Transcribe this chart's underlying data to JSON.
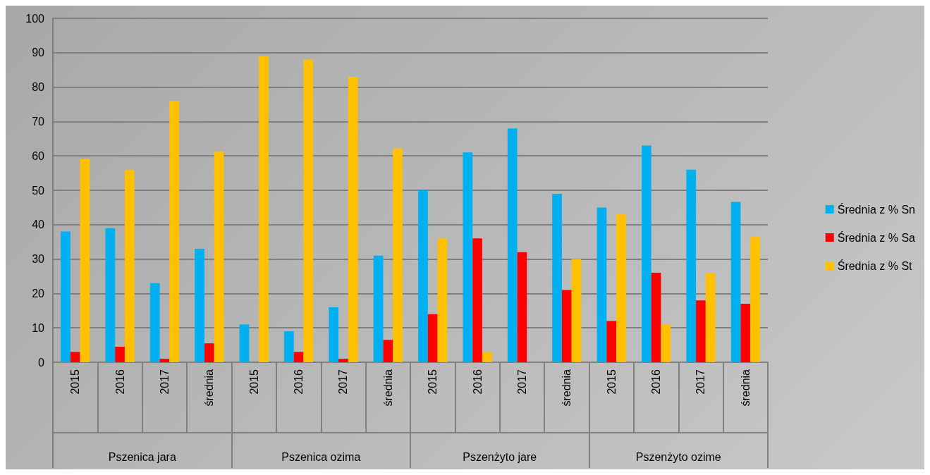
{
  "chart_data": {
    "type": "bar",
    "categories": [
      "2015",
      "2016",
      "2017",
      "średnia",
      "2015",
      "2016",
      "2017",
      "średnia",
      "2015",
      "2016",
      "2017",
      "średnia",
      "2015",
      "2016",
      "2017",
      "średnia"
    ],
    "annotations": [
      "Pszenica jara",
      "Pszenica ozima",
      "Pszenżyto jare",
      "Pszenżyto ozime"
    ],
    "series": [
      {
        "name": "Średnia z % Sn",
        "color": "#00b0f0",
        "values": [
          38,
          39,
          23,
          33,
          11,
          9,
          16,
          31,
          50,
          61,
          68,
          49,
          45,
          63,
          56,
          46.6
        ]
      },
      {
        "name": "Średnia z % Sa",
        "color": "#ff0000",
        "values": [
          3,
          4.5,
          1,
          5.5,
          0,
          3,
          1,
          6.5,
          14,
          36,
          32,
          21,
          12,
          26,
          18,
          17
        ]
      },
      {
        "name": "Średnia z % St",
        "color": "#ffc000",
        "values": [
          59,
          56,
          76,
          61.3,
          89,
          88,
          83,
          62.2,
          36,
          3,
          0,
          30,
          43,
          11,
          26,
          36.4
        ]
      }
    ],
    "ylim": [
      0,
      100
    ],
    "yticks": [
      0,
      10,
      20,
      30,
      40,
      50,
      60,
      70,
      80,
      90,
      100
    ],
    "grid": "y",
    "legend": "right"
  }
}
